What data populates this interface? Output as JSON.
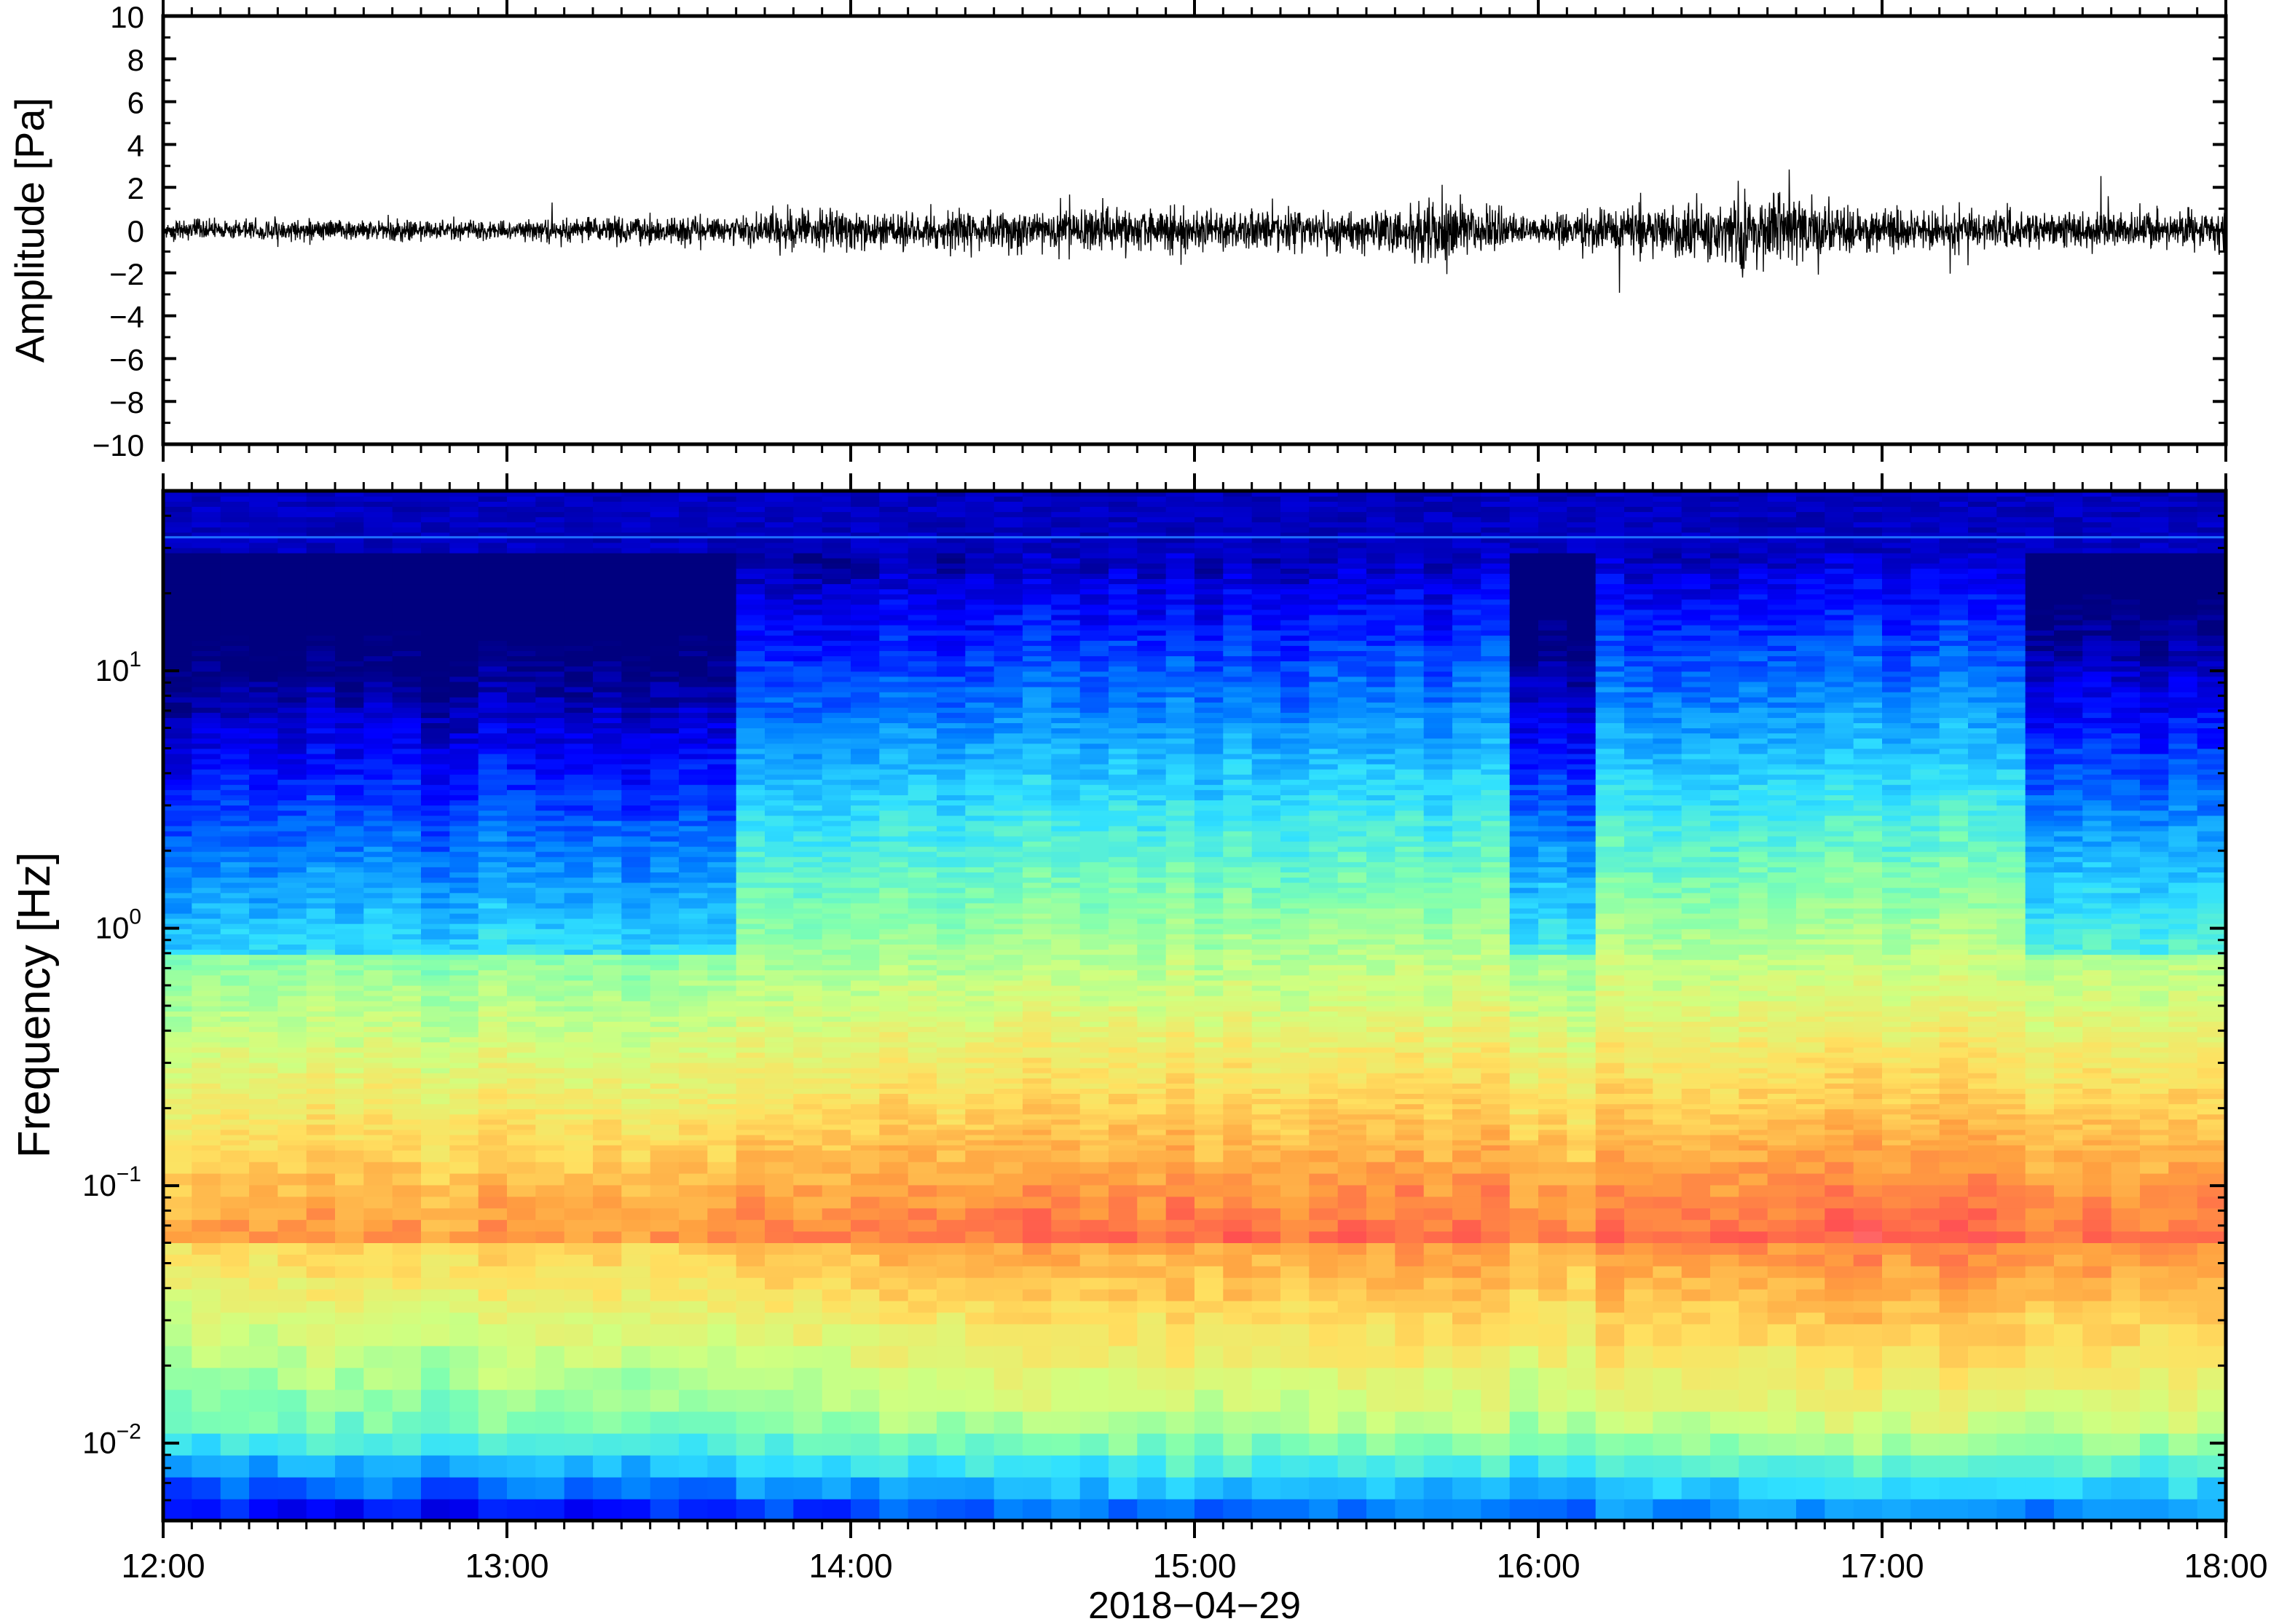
{
  "chart_data": [
    {
      "type": "line",
      "panel": "waveform",
      "ylabel": "Amplitude [Pa]",
      "ylim": [
        -10,
        10
      ],
      "yticks": [
        10,
        8,
        6,
        4,
        2,
        0,
        -2,
        -4,
        -6,
        -8,
        -10
      ],
      "ytick_labels": [
        "10",
        "8",
        "6",
        "4",
        "2",
        "0",
        "−2",
        "−4",
        "−6",
        "−8",
        "−10"
      ],
      "xlim": [
        "12:00",
        "18:00"
      ],
      "series": [
        {
          "x_hours": [
            12.0,
            12.5,
            13.0,
            13.5,
            14.0,
            14.5,
            15.0,
            15.5,
            15.7,
            16.0,
            16.5,
            16.6,
            17.0,
            17.5,
            18.0
          ],
          "envelope_amplitude": [
            0.5,
            0.5,
            0.5,
            0.7,
            1.0,
            1.0,
            1.1,
            1.0,
            1.6,
            0.8,
            1.5,
            2.0,
            1.0,
            0.9,
            1.0
          ]
        }
      ],
      "grid": false
    },
    {
      "type": "heatmap",
      "panel": "spectrogram",
      "ylabel": "Frequency [Hz]",
      "yscale": "log",
      "ylim": [
        0.005,
        50
      ],
      "yticks": [
        {
          "base": "10",
          "exp": "1",
          "value": 10
        },
        {
          "base": "10",
          "exp": "0",
          "value": 1
        },
        {
          "base": "10",
          "exp": "−1",
          "value": 0.1
        },
        {
          "base": "10",
          "exp": "−2",
          "value": 0.01
        }
      ],
      "xlabel": "2018−04−29",
      "xticks": [
        "12:00",
        "13:00",
        "14:00",
        "15:00",
        "16:00",
        "17:00",
        "18:00"
      ],
      "xlim": [
        "12:00",
        "18:00"
      ],
      "colormap": [
        "#00007f",
        "#0000ff",
        "#0080ff",
        "#30e0ff",
        "#7fffb0",
        "#d0ff80",
        "#ffe060",
        "#ffa040",
        "#ff5050",
        "#ffb0b0"
      ],
      "quiet_intervals_hours": [
        [
          12.0,
          13.7
        ],
        [
          15.9,
          16.2
        ],
        [
          17.4,
          18.0
        ]
      ],
      "tone_line_hz": 33,
      "grid": false
    }
  ]
}
